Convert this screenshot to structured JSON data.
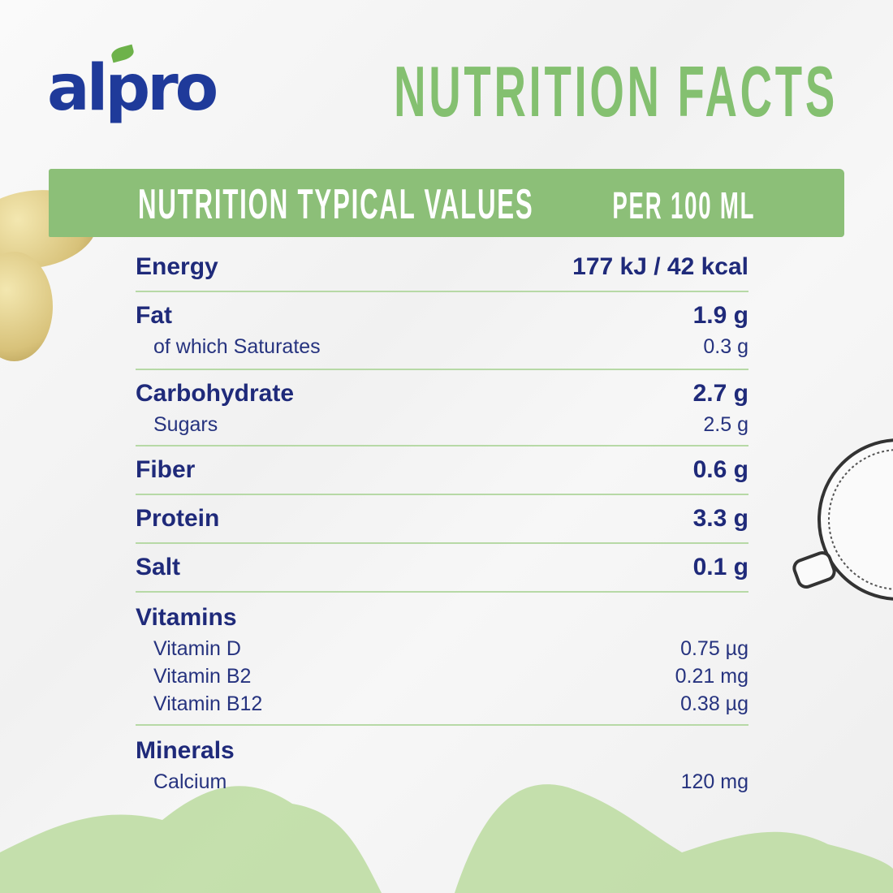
{
  "brand": {
    "logo_text": "alpro"
  },
  "title": "NUTRITION FACTS",
  "header": {
    "left": "NUTRITION TYPICAL VALUES",
    "right": "PER 100 ML"
  },
  "colors": {
    "navy": "#1f2a7a",
    "green": "#84c070",
    "band": "#8cbf78"
  },
  "rows": [
    {
      "label": "Energy",
      "value": "177 kJ / 42 kcal",
      "subs": []
    },
    {
      "label": "Fat",
      "value": "1.9 g",
      "subs": [
        {
          "label": "of which Saturates",
          "value": "0.3 g"
        }
      ]
    },
    {
      "label": "Carbohydrate",
      "value": "2.7 g",
      "subs": [
        {
          "label": "Sugars",
          "value": "2.5 g"
        }
      ]
    },
    {
      "label": "Fiber",
      "value": "0.6 g",
      "subs": []
    },
    {
      "label": "Protein",
      "value": "3.3 g",
      "subs": []
    },
    {
      "label": "Salt",
      "value": "0.1 g",
      "subs": []
    },
    {
      "label": "Vitamins",
      "value": "",
      "subs": [
        {
          "label": "Vitamin D",
          "value": "0.75 µg"
        },
        {
          "label": "Vitamin B2",
          "value": "0.21 mg"
        },
        {
          "label": "Vitamin B12",
          "value": "0.38 µg"
        }
      ]
    },
    {
      "label": "Minerals",
      "value": "",
      "subs": [
        {
          "label": "Calcium",
          "value": "120 mg"
        }
      ]
    }
  ]
}
